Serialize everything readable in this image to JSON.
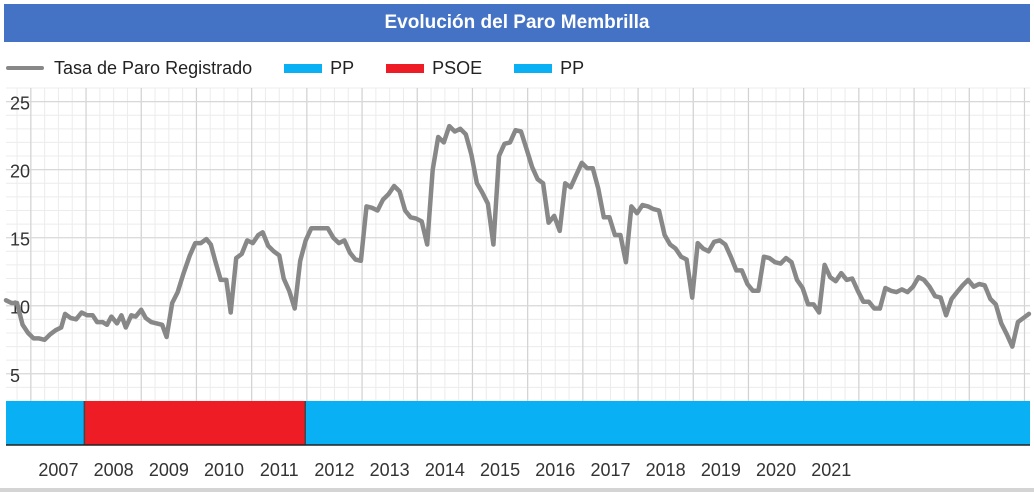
{
  "chart_data": {
    "type": "line",
    "title": "Evolución del Paro Membrilla",
    "series": [
      {
        "name": "Tasa de Paro Registrado",
        "color": "#888888",
        "points": [
          [
            2006.55,
            10.4
          ],
          [
            2006.65,
            10.2
          ],
          [
            2006.75,
            10.2
          ],
          [
            2006.85,
            8.6
          ],
          [
            2006.95,
            8.0
          ],
          [
            2007.05,
            7.6
          ],
          [
            2007.15,
            7.6
          ],
          [
            2007.25,
            7.5
          ],
          [
            2007.35,
            7.9
          ],
          [
            2007.45,
            8.2
          ],
          [
            2007.55,
            8.4
          ],
          [
            2007.62,
            9.4
          ],
          [
            2007.72,
            9.1
          ],
          [
            2007.82,
            9.0
          ],
          [
            2007.92,
            9.5
          ],
          [
            2008.02,
            9.3
          ],
          [
            2008.12,
            9.3
          ],
          [
            2008.2,
            8.8
          ],
          [
            2008.3,
            8.8
          ],
          [
            2008.38,
            8.6
          ],
          [
            2008.46,
            9.2
          ],
          [
            2008.56,
            8.7
          ],
          [
            2008.64,
            9.3
          ],
          [
            2008.72,
            8.4
          ],
          [
            2008.82,
            9.3
          ],
          [
            2008.9,
            9.2
          ],
          [
            2009.0,
            9.7
          ],
          [
            2009.08,
            9.1
          ],
          [
            2009.18,
            8.8
          ],
          [
            2009.28,
            8.7
          ],
          [
            2009.38,
            8.6
          ],
          [
            2009.46,
            7.7
          ],
          [
            2009.56,
            10.2
          ],
          [
            2009.66,
            11.0
          ],
          [
            2009.76,
            12.3
          ],
          [
            2009.88,
            13.7
          ],
          [
            2009.98,
            14.6
          ],
          [
            2010.08,
            14.6
          ],
          [
            2010.18,
            14.9
          ],
          [
            2010.26,
            14.5
          ],
          [
            2010.34,
            13.3
          ],
          [
            2010.44,
            11.9
          ],
          [
            2010.54,
            11.9
          ],
          [
            2010.62,
            9.5
          ],
          [
            2010.72,
            13.5
          ],
          [
            2010.82,
            13.8
          ],
          [
            2010.92,
            14.8
          ],
          [
            2011.02,
            14.6
          ],
          [
            2011.12,
            15.2
          ],
          [
            2011.2,
            15.4
          ],
          [
            2011.3,
            14.4
          ],
          [
            2011.4,
            14.0
          ],
          [
            2011.5,
            13.7
          ],
          [
            2011.58,
            12.0
          ],
          [
            2011.68,
            11.1
          ],
          [
            2011.78,
            9.8
          ],
          [
            2011.88,
            13.3
          ],
          [
            2011.98,
            14.8
          ],
          [
            2012.08,
            15.7
          ],
          [
            2012.18,
            15.7
          ],
          [
            2012.28,
            15.7
          ],
          [
            2012.38,
            15.7
          ],
          [
            2012.48,
            15.0
          ],
          [
            2012.58,
            14.6
          ],
          [
            2012.68,
            14.8
          ],
          [
            2012.78,
            13.9
          ],
          [
            2012.88,
            13.4
          ],
          [
            2012.98,
            13.3
          ],
          [
            2013.08,
            17.3
          ],
          [
            2013.18,
            17.2
          ],
          [
            2013.28,
            17.0
          ],
          [
            2013.38,
            17.8
          ],
          [
            2013.48,
            18.2
          ],
          [
            2013.58,
            18.8
          ],
          [
            2013.68,
            18.4
          ],
          [
            2013.78,
            17.0
          ],
          [
            2013.88,
            16.5
          ],
          [
            2013.98,
            16.4
          ],
          [
            2014.08,
            16.2
          ],
          [
            2014.18,
            14.5
          ],
          [
            2014.28,
            20.0
          ],
          [
            2014.38,
            22.4
          ],
          [
            2014.48,
            22.0
          ],
          [
            2014.58,
            23.2
          ],
          [
            2014.68,
            22.8
          ],
          [
            2014.78,
            23.0
          ],
          [
            2014.88,
            22.6
          ],
          [
            2014.98,
            21.1
          ],
          [
            2015.08,
            19.0
          ],
          [
            2015.18,
            18.3
          ],
          [
            2015.28,
            17.5
          ],
          [
            2015.38,
            14.5
          ],
          [
            2015.48,
            21.0
          ],
          [
            2015.58,
            21.9
          ],
          [
            2015.68,
            22.0
          ],
          [
            2015.78,
            22.9
          ],
          [
            2015.88,
            22.8
          ],
          [
            2015.98,
            21.5
          ],
          [
            2016.08,
            20.2
          ],
          [
            2016.18,
            19.3
          ],
          [
            2016.28,
            19.0
          ],
          [
            2016.38,
            16.1
          ],
          [
            2016.48,
            16.6
          ],
          [
            2016.58,
            15.5
          ],
          [
            2016.68,
            19.0
          ],
          [
            2016.78,
            18.7
          ],
          [
            2016.88,
            19.6
          ],
          [
            2016.98,
            20.5
          ],
          [
            2017.08,
            20.1
          ],
          [
            2017.18,
            20.1
          ],
          [
            2017.28,
            18.6
          ],
          [
            2017.38,
            16.5
          ],
          [
            2017.48,
            16.5
          ],
          [
            2017.58,
            15.2
          ],
          [
            2017.68,
            15.2
          ],
          [
            2017.78,
            13.2
          ],
          [
            2017.88,
            17.3
          ],
          [
            2017.98,
            16.8
          ],
          [
            2018.08,
            17.4
          ],
          [
            2018.18,
            17.3
          ],
          [
            2018.28,
            17.1
          ],
          [
            2018.38,
            17.0
          ],
          [
            2018.48,
            15.2
          ],
          [
            2018.58,
            14.5
          ],
          [
            2018.68,
            14.2
          ],
          [
            2018.78,
            13.6
          ],
          [
            2018.88,
            13.4
          ],
          [
            2018.98,
            10.6
          ],
          [
            2019.08,
            14.6
          ],
          [
            2019.18,
            14.2
          ],
          [
            2019.28,
            14.0
          ],
          [
            2019.38,
            14.7
          ],
          [
            2019.48,
            14.8
          ],
          [
            2019.58,
            14.5
          ],
          [
            2019.68,
            13.6
          ],
          [
            2019.78,
            12.6
          ],
          [
            2019.88,
            12.6
          ],
          [
            2019.98,
            11.6
          ],
          [
            2020.08,
            11.1
          ],
          [
            2020.18,
            11.1
          ],
          [
            2020.28,
            13.6
          ],
          [
            2020.38,
            13.5
          ],
          [
            2020.48,
            13.2
          ],
          [
            2020.58,
            13.1
          ],
          [
            2020.68,
            13.5
          ],
          [
            2020.78,
            13.2
          ],
          [
            2020.88,
            11.9
          ],
          [
            2020.98,
            11.3
          ],
          [
            2021.08,
            10.1
          ],
          [
            2021.18,
            10.1
          ],
          [
            2021.28,
            9.5
          ],
          [
            2021.38,
            13.0
          ],
          [
            2021.48,
            12.1
          ],
          [
            2021.58,
            11.8
          ],
          [
            2021.68,
            12.4
          ],
          [
            2021.78,
            11.9
          ],
          [
            2021.88,
            12.0
          ],
          [
            2021.98,
            11.1
          ],
          [
            2022.08,
            10.3
          ],
          [
            2022.18,
            10.3
          ],
          [
            2022.28,
            9.8
          ],
          [
            2022.38,
            9.8
          ],
          [
            2022.48,
            11.3
          ],
          [
            2022.58,
            11.1
          ],
          [
            2022.68,
            11.0
          ],
          [
            2022.78,
            11.2
          ],
          [
            2022.88,
            11.0
          ],
          [
            2022.98,
            11.4
          ],
          [
            2023.08,
            12.1
          ],
          [
            2023.18,
            11.9
          ],
          [
            2023.28,
            11.4
          ],
          [
            2023.38,
            10.7
          ],
          [
            2023.48,
            10.6
          ],
          [
            2023.58,
            9.3
          ],
          [
            2023.68,
            10.5
          ],
          [
            2023.78,
            11.0
          ],
          [
            2023.88,
            11.5
          ],
          [
            2023.98,
            11.9
          ],
          [
            2024.08,
            11.4
          ],
          [
            2024.18,
            11.6
          ],
          [
            2024.28,
            11.5
          ],
          [
            2024.38,
            10.5
          ],
          [
            2024.48,
            10.1
          ],
          [
            2024.58,
            8.7
          ],
          [
            2024.68,
            7.9
          ],
          [
            2024.78,
            7.0
          ],
          [
            2024.88,
            8.8
          ],
          [
            2024.98,
            9.1
          ],
          [
            2025.08,
            9.4
          ]
        ]
      }
    ],
    "bands": [
      {
        "name": "PP",
        "from": 2006.55,
        "to": 2007.97,
        "color": "#0ab0f4"
      },
      {
        "name": "PSOE",
        "from": 2007.97,
        "to": 2011.97,
        "color": "#ee1c25"
      },
      {
        "name": "PP",
        "from": 2011.97,
        "to": 2025.1,
        "color": "#0ab0f4"
      }
    ],
    "x_tick_labels": [
      "2007",
      "2008",
      "2009",
      "2010",
      "2011",
      "2012",
      "2013",
      "2014",
      "2015",
      "2016",
      "2017",
      "2018",
      "2019",
      "2020",
      "2021"
    ],
    "x_tick_values": [
      2007.5,
      2008.5,
      2009.5,
      2010.5,
      2011.5,
      2012.5,
      2013.5,
      2014.5,
      2015.5,
      2016.5,
      2017.5,
      2018.5,
      2019.5,
      2020.5,
      2021.5
    ],
    "xlim": [
      2006.55,
      2025.1
    ],
    "y_ticks": [
      5,
      10,
      15,
      20,
      25
    ],
    "ylim": [
      3,
      26
    ],
    "grid": true,
    "legend_position": "top-left"
  },
  "legend": [
    {
      "label": "Tasa de Paro Registrado",
      "kind": "line",
      "color": "#888888"
    },
    {
      "label": "PP",
      "kind": "box",
      "color": "#0ab0f4"
    },
    {
      "label": "PSOE",
      "kind": "box",
      "color": "#ee1c25"
    },
    {
      "label": "PP",
      "kind": "box",
      "color": "#0ab0f4"
    }
  ]
}
